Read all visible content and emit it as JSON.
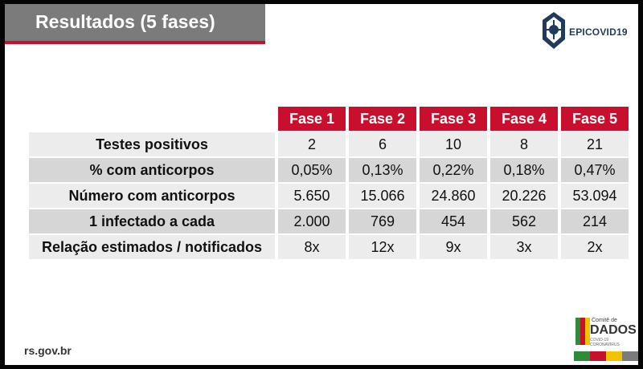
{
  "slide": {
    "title": "Resultados (5 fases)",
    "logo_text": "EPICOVID19",
    "source": "rs.gov.br",
    "comite_small": "Comitê de",
    "comite_big": "DADOS",
    "comite_sub": "COVID-19 CORONAVÍRUS"
  },
  "table": {
    "columns": [
      "Fase 1",
      "Fase 2",
      "Fase 3",
      "Fase 4",
      "Fase 5"
    ],
    "rows": [
      {
        "label": "Testes positivos",
        "values": [
          "2",
          "6",
          "10",
          "8",
          "21"
        ]
      },
      {
        "label": "% com anticorpos",
        "values": [
          "0,05%",
          "0,13%",
          "0,22%",
          "0,18%",
          "0,47%"
        ]
      },
      {
        "label": "Número com anticorpos",
        "values": [
          "5.650",
          "15.066",
          "24.860",
          "20.226",
          "53.094"
        ]
      },
      {
        "label": "1 infectado a cada",
        "values": [
          "2.000",
          "769",
          "454",
          "562",
          "214"
        ]
      },
      {
        "label": "Relação estimados / notificados",
        "values": [
          "8x",
          "12x",
          "9x",
          "3x",
          "2x"
        ]
      }
    ]
  },
  "colors": {
    "accent_red": "#c8102e",
    "title_gray": "#7b7b7b",
    "row_dark": "#d6d6d6",
    "row_light": "#ececec"
  }
}
